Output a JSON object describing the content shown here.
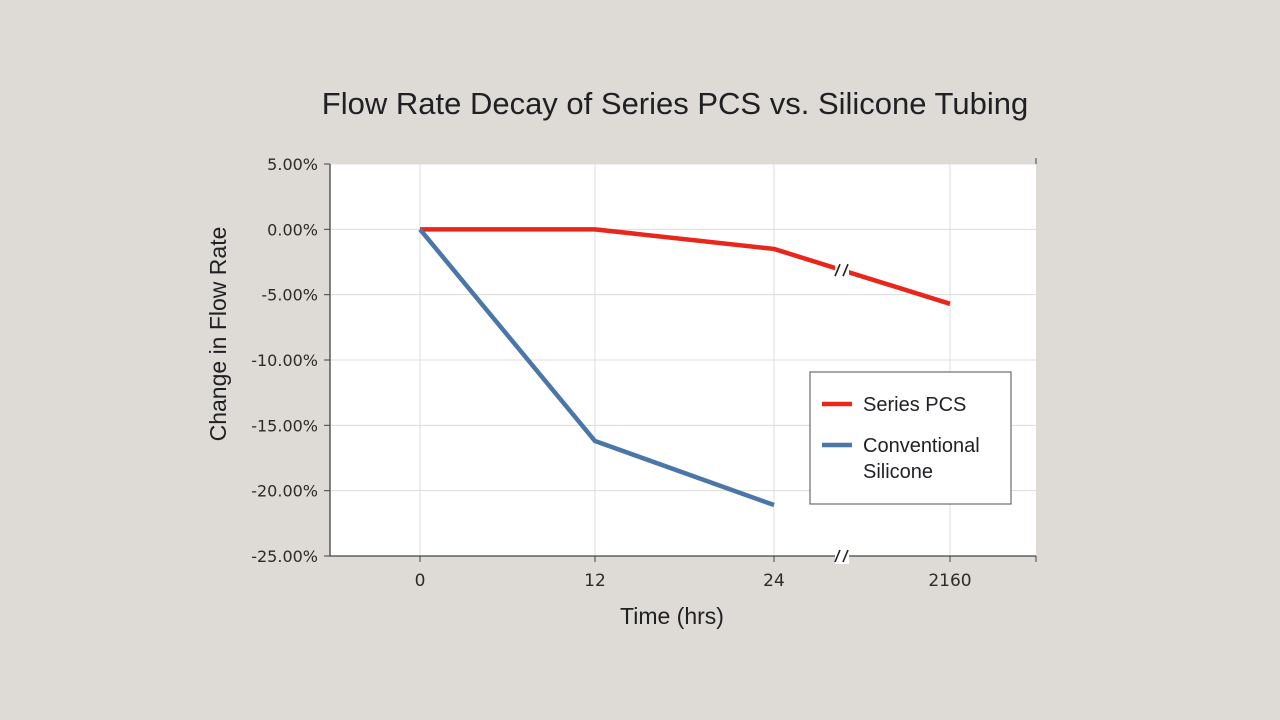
{
  "chart_data": {
    "type": "line",
    "title": "Flow Rate Decay of Series PCS vs. Silicone Tubing",
    "xlabel": "Time (hrs)",
    "ylabel": "Change in Flow Rate",
    "categories": [
      "0",
      "12",
      "24",
      "2160"
    ],
    "x_axis_break": "between 24 and 2160",
    "y_ticks": [
      "5.00%",
      "0.00%",
      "-5.00%",
      "-10.00%",
      "-15.00%",
      "-20.00%",
      "-25.00%"
    ],
    "ylim": [
      -25,
      5
    ],
    "grid": true,
    "legend_position": "right",
    "series": [
      {
        "name": "Series PCS",
        "legend_lines": [
          "Series PCS"
        ],
        "color": "#e8261c",
        "x": [
          "0",
          "12",
          "24",
          "2160"
        ],
        "values": [
          0.0,
          0.0,
          -1.5,
          -5.7
        ]
      },
      {
        "name": "Conventional Silicone",
        "legend_lines": [
          "Conventional",
          "Silicone"
        ],
        "color": "#4a76a8",
        "x": [
          "0",
          "12",
          "24"
        ],
        "values": [
          0.0,
          -16.2,
          -21.1
        ]
      }
    ]
  }
}
